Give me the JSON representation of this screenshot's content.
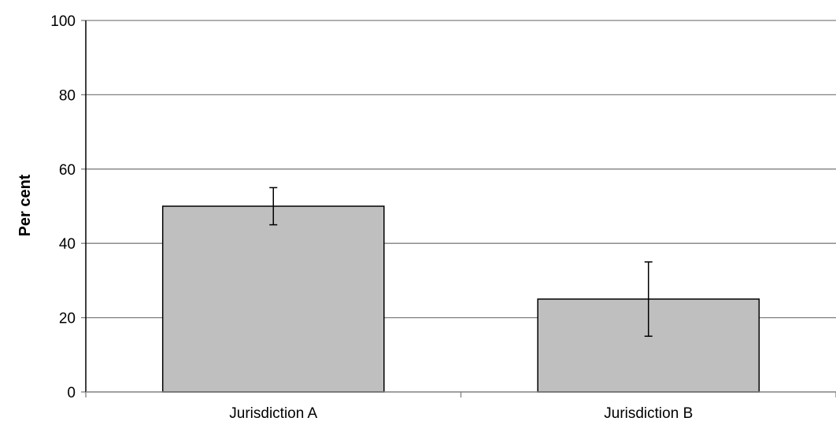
{
  "chart_data": {
    "type": "bar",
    "title": "",
    "xlabel": "",
    "ylabel": "Per cent",
    "categories": [
      "Jurisdiction A",
      "Jurisdiction B"
    ],
    "values": [
      50,
      25
    ],
    "error_bars": [
      {
        "low": 45,
        "high": 55
      },
      {
        "low": 15,
        "high": 35
      }
    ],
    "ylim": [
      0,
      100
    ],
    "yticks": [
      0,
      20,
      40,
      60,
      80,
      100
    ],
    "grid": "horizontal",
    "legend": "none",
    "colors": {
      "bar_fill": "#bfbfbf",
      "bar_stroke": "#000000",
      "grid": "#808080"
    }
  }
}
